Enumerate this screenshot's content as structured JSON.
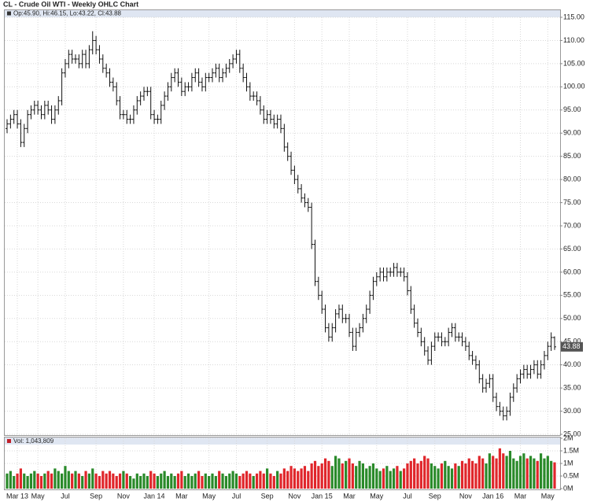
{
  "chart_data": [
    {
      "type": "ohlc",
      "title": "CL - Crude Oil WTI - Weekly OHLC Chart",
      "legend": "Op:45.90, Hi:46.15, Lo:43.22, Cl:43.88",
      "categories": [
        null,
        null,
        null,
        "Mar 13",
        null,
        null,
        null,
        null,
        null,
        "May",
        null,
        null,
        null,
        null,
        null,
        null,
        null,
        "Jul",
        null,
        null,
        null,
        null,
        null,
        null,
        null,
        null,
        "Sep",
        null,
        null,
        null,
        null,
        null,
        null,
        null,
        "Nov",
        null,
        null,
        null,
        null,
        null,
        null,
        null,
        null,
        "Jan 14",
        null,
        null,
        null,
        null,
        null,
        null,
        null,
        "Mar",
        null,
        null,
        null,
        null,
        null,
        null,
        null,
        "May",
        null,
        null,
        null,
        null,
        null,
        null,
        null,
        "Jul",
        null,
        null,
        null,
        null,
        null,
        null,
        null,
        null,
        "Sep",
        null,
        null,
        null,
        null,
        null,
        null,
        null,
        "Nov",
        null,
        null,
        null,
        null,
        null,
        null,
        null,
        "Jan 15",
        null,
        null,
        null,
        null,
        null,
        null,
        null,
        "Mar",
        null,
        null,
        null,
        null,
        null,
        null,
        null,
        "May",
        null,
        null,
        null,
        null,
        null,
        null,
        null,
        null,
        "Jul",
        null,
        null,
        null,
        null,
        null,
        null,
        null,
        "Sep",
        null,
        null,
        null,
        null,
        null,
        null,
        null,
        null,
        "Nov",
        null,
        null,
        null,
        null,
        null,
        null,
        null,
        "Jan 16",
        null,
        null,
        null,
        null,
        null,
        null,
        null,
        "Mar",
        null,
        null,
        null,
        null,
        null,
        null,
        null,
        "May",
        null,
        null
      ],
      "open": [
        91,
        92,
        93,
        94,
        92,
        88,
        91,
        94,
        95,
        96,
        95,
        94,
        96,
        95,
        93,
        95,
        97,
        103,
        105,
        107,
        106,
        106,
        105,
        107,
        105,
        108,
        110,
        108,
        106,
        104,
        103,
        101,
        100,
        97,
        94,
        94,
        93,
        93,
        95,
        97,
        98,
        99,
        99,
        94,
        93,
        93,
        96,
        98,
        100,
        102,
        103,
        101,
        99,
        100,
        100,
        102,
        103,
        101,
        100,
        102,
        102,
        103,
        104,
        102,
        103,
        104,
        105,
        106,
        107,
        104,
        102,
        100,
        98,
        98,
        97,
        95,
        93,
        94,
        93,
        92,
        93,
        91,
        87,
        85,
        82,
        80,
        78,
        76,
        75,
        74,
        66,
        58,
        55,
        52,
        48,
        46,
        48,
        51,
        52,
        50,
        50,
        47,
        44,
        47,
        48,
        50,
        52,
        55,
        58,
        59,
        60,
        59,
        60,
        60,
        61,
        60,
        60,
        59,
        56,
        52,
        49,
        47,
        45,
        43,
        41,
        44,
        46,
        46,
        45,
        45,
        47,
        48,
        46,
        46,
        45,
        44,
        42,
        41,
        40,
        37,
        35,
        36,
        37,
        33,
        31,
        30,
        29,
        30,
        33,
        35,
        37,
        38,
        39,
        38,
        39,
        40,
        38,
        40,
        42,
        44,
        45.9
      ],
      "high": [
        93,
        94,
        95,
        95,
        93,
        92,
        95,
        96,
        97,
        97,
        96,
        97,
        97,
        96,
        96,
        98,
        104,
        106,
        108,
        108,
        107,
        107,
        108,
        108,
        109,
        112,
        111,
        109,
        107,
        105,
        104,
        102,
        101,
        98,
        95,
        95,
        94,
        96,
        98,
        99,
        100,
        100,
        100,
        95,
        94,
        97,
        99,
        101,
        103,
        104,
        104,
        102,
        101,
        101,
        103,
        104,
        104,
        102,
        103,
        103,
        104,
        105,
        105,
        104,
        105,
        106,
        107,
        108,
        108,
        105,
        103,
        101,
        99,
        99,
        98,
        96,
        95,
        95,
        94,
        94,
        94,
        92,
        88,
        86,
        83,
        81,
        79,
        77,
        76,
        75,
        67,
        59,
        56,
        53,
        49,
        49,
        52,
        53,
        53,
        51,
        51,
        48,
        48,
        49,
        51,
        53,
        56,
        59,
        60,
        61,
        61,
        61,
        61,
        62,
        62,
        61,
        61,
        60,
        57,
        53,
        50,
        48,
        46,
        44,
        45,
        47,
        47,
        47,
        46,
        48,
        49,
        49,
        47,
        47,
        46,
        45,
        43,
        42,
        41,
        38,
        37,
        38,
        38,
        34,
        32,
        31,
        31,
        34,
        36,
        38,
        39,
        40,
        40,
        40,
        41,
        41,
        41,
        43,
        45,
        47,
        46.15
      ],
      "low": [
        90,
        91,
        92,
        91,
        87,
        87,
        90,
        93,
        94,
        94,
        93,
        93,
        94,
        92,
        92,
        94,
        96,
        102,
        104,
        105,
        105,
        104,
        104,
        104,
        104,
        107,
        107,
        105,
        103,
        102,
        100,
        99,
        96,
        93,
        93,
        92,
        92,
        92,
        94,
        96,
        97,
        98,
        93,
        92,
        92,
        92,
        95,
        97,
        99,
        101,
        100,
        98,
        98,
        99,
        99,
        101,
        100,
        99,
        99,
        101,
        101,
        102,
        101,
        101,
        102,
        103,
        104,
        105,
        103,
        101,
        99,
        97,
        97,
        96,
        94,
        92,
        92,
        92,
        91,
        91,
        90,
        86,
        84,
        81,
        79,
        77,
        75,
        74,
        73,
        65,
        57,
        54,
        51,
        47,
        45,
        45,
        47,
        50,
        49,
        49,
        46,
        43,
        43,
        46,
        47,
        49,
        51,
        54,
        57,
        58,
        58,
        58,
        59,
        59,
        59,
        59,
        58,
        55,
        51,
        48,
        46,
        44,
        42,
        40,
        40,
        43,
        45,
        44,
        44,
        44,
        46,
        45,
        45,
        44,
        43,
        41,
        40,
        39,
        36,
        34,
        34,
        35,
        32,
        30,
        29,
        28,
        28,
        29,
        32,
        34,
        36,
        37,
        37,
        37,
        38,
        37,
        37,
        39,
        41,
        43,
        43.22
      ],
      "close": [
        92,
        93,
        94,
        92,
        88,
        91,
        94,
        95,
        96,
        95,
        94,
        96,
        95,
        93,
        95,
        97,
        103,
        105,
        107,
        106,
        106,
        105,
        107,
        105,
        108,
        110,
        108,
        106,
        104,
        103,
        101,
        100,
        97,
        94,
        94,
        93,
        93,
        95,
        97,
        98,
        99,
        99,
        94,
        93,
        93,
        96,
        98,
        100,
        102,
        103,
        101,
        99,
        100,
        100,
        102,
        103,
        101,
        100,
        102,
        102,
        103,
        104,
        102,
        103,
        104,
        105,
        106,
        107,
        104,
        102,
        100,
        98,
        98,
        97,
        95,
        93,
        94,
        93,
        92,
        93,
        91,
        87,
        85,
        82,
        80,
        78,
        76,
        75,
        74,
        66,
        58,
        55,
        52,
        48,
        46,
        48,
        51,
        52,
        50,
        50,
        47,
        44,
        47,
        48,
        50,
        52,
        55,
        58,
        59,
        60,
        59,
        60,
        60,
        61,
        60,
        60,
        59,
        56,
        52,
        49,
        47,
        45,
        43,
        41,
        44,
        46,
        46,
        45,
        45,
        47,
        48,
        46,
        46,
        45,
        44,
        42,
        41,
        40,
        37,
        35,
        36,
        37,
        33,
        31,
        30,
        29,
        30,
        33,
        35,
        37,
        38,
        39,
        38,
        39,
        40,
        38,
        40,
        42,
        44,
        45.9,
        43.88
      ],
      "color": "#111111",
      "ylim": [
        25,
        115
      ],
      "yticks": [
        {
          "value": 25,
          "label": "25.00"
        },
        {
          "value": 30,
          "label": "30.00"
        },
        {
          "value": 35,
          "label": "35.00"
        },
        {
          "value": 40,
          "label": "40.00"
        },
        {
          "value": 45,
          "label": "45.00"
        },
        {
          "value": 50,
          "label": "50.00"
        },
        {
          "value": 55,
          "label": "55.00"
        },
        {
          "value": 60,
          "label": "60.00"
        },
        {
          "value": 65,
          "label": "65.00"
        },
        {
          "value": 70,
          "label": "70.00"
        },
        {
          "value": 75,
          "label": "75.00"
        },
        {
          "value": 80,
          "label": "80.00"
        },
        {
          "value": 85,
          "label": "85.00"
        },
        {
          "value": 90,
          "label": "90.00"
        },
        {
          "value": 95,
          "label": "95.00"
        },
        {
          "value": 100,
          "label": "100.00"
        },
        {
          "value": 105,
          "label": "105.00"
        },
        {
          "value": 110,
          "label": "110.00"
        },
        {
          "value": 115,
          "label": "115.00"
        }
      ],
      "last_label": "43.88",
      "grid": true
    },
    {
      "type": "bar",
      "legend": "Vol: 1,043,809",
      "values": [
        0.6,
        0.7,
        0.5,
        0.6,
        0.8,
        0.6,
        0.5,
        0.6,
        0.7,
        0.6,
        0.5,
        0.6,
        0.7,
        0.6,
        0.8,
        0.7,
        0.6,
        0.9,
        0.7,
        0.6,
        0.7,
        0.6,
        0.5,
        0.7,
        0.6,
        0.8,
        0.6,
        0.5,
        0.7,
        0.6,
        0.7,
        0.6,
        0.5,
        0.6,
        0.7,
        0.6,
        0.5,
        0.4,
        0.6,
        0.5,
        0.6,
        0.5,
        0.7,
        0.6,
        0.5,
        0.6,
        0.7,
        0.5,
        0.6,
        0.5,
        0.6,
        0.7,
        0.5,
        0.6,
        0.5,
        0.6,
        0.7,
        0.5,
        0.6,
        0.5,
        0.6,
        0.5,
        0.7,
        0.6,
        0.5,
        0.6,
        0.7,
        0.6,
        0.5,
        0.6,
        0.7,
        0.6,
        0.5,
        0.6,
        0.7,
        0.6,
        0.8,
        0.6,
        0.5,
        0.7,
        0.6,
        0.8,
        0.7,
        0.9,
        0.8,
        0.7,
        0.8,
        0.9,
        0.7,
        1.0,
        1.1,
        0.9,
        1.0,
        1.2,
        1.1,
        0.9,
        1.3,
        1.2,
        1.0,
        1.1,
        1.2,
        1.0,
        0.9,
        1.1,
        1.0,
        0.8,
        0.9,
        1.0,
        0.8,
        0.7,
        0.8,
        0.9,
        0.7,
        0.8,
        0.9,
        0.7,
        0.8,
        1.0,
        1.1,
        1.2,
        1.0,
        1.1,
        1.3,
        1.2,
        1.0,
        0.9,
        0.8,
        1.0,
        1.1,
        0.9,
        0.8,
        1.0,
        0.9,
        1.1,
        1.0,
        1.2,
        1.1,
        1.0,
        1.3,
        1.2,
        1.0,
        1.4,
        1.3,
        1.2,
        1.6,
        1.4,
        1.3,
        1.5,
        1.2,
        1.1,
        1.3,
        1.4,
        1.2,
        1.3,
        1.2,
        1.1,
        1.4,
        1.2,
        1.3,
        1.1,
        1.043809
      ],
      "up_color": "#2a8a2a",
      "down_color": "#e0262b",
      "ylim": [
        0,
        2
      ],
      "yticks": [
        {
          "value": 0,
          "label": "0M"
        },
        {
          "value": 0.5,
          "label": "0.5M"
        },
        {
          "value": 1,
          "label": "1M"
        },
        {
          "value": 1.5,
          "label": "1.5M"
        },
        {
          "value": 2,
          "label": "2M"
        }
      ],
      "grid": true
    }
  ]
}
